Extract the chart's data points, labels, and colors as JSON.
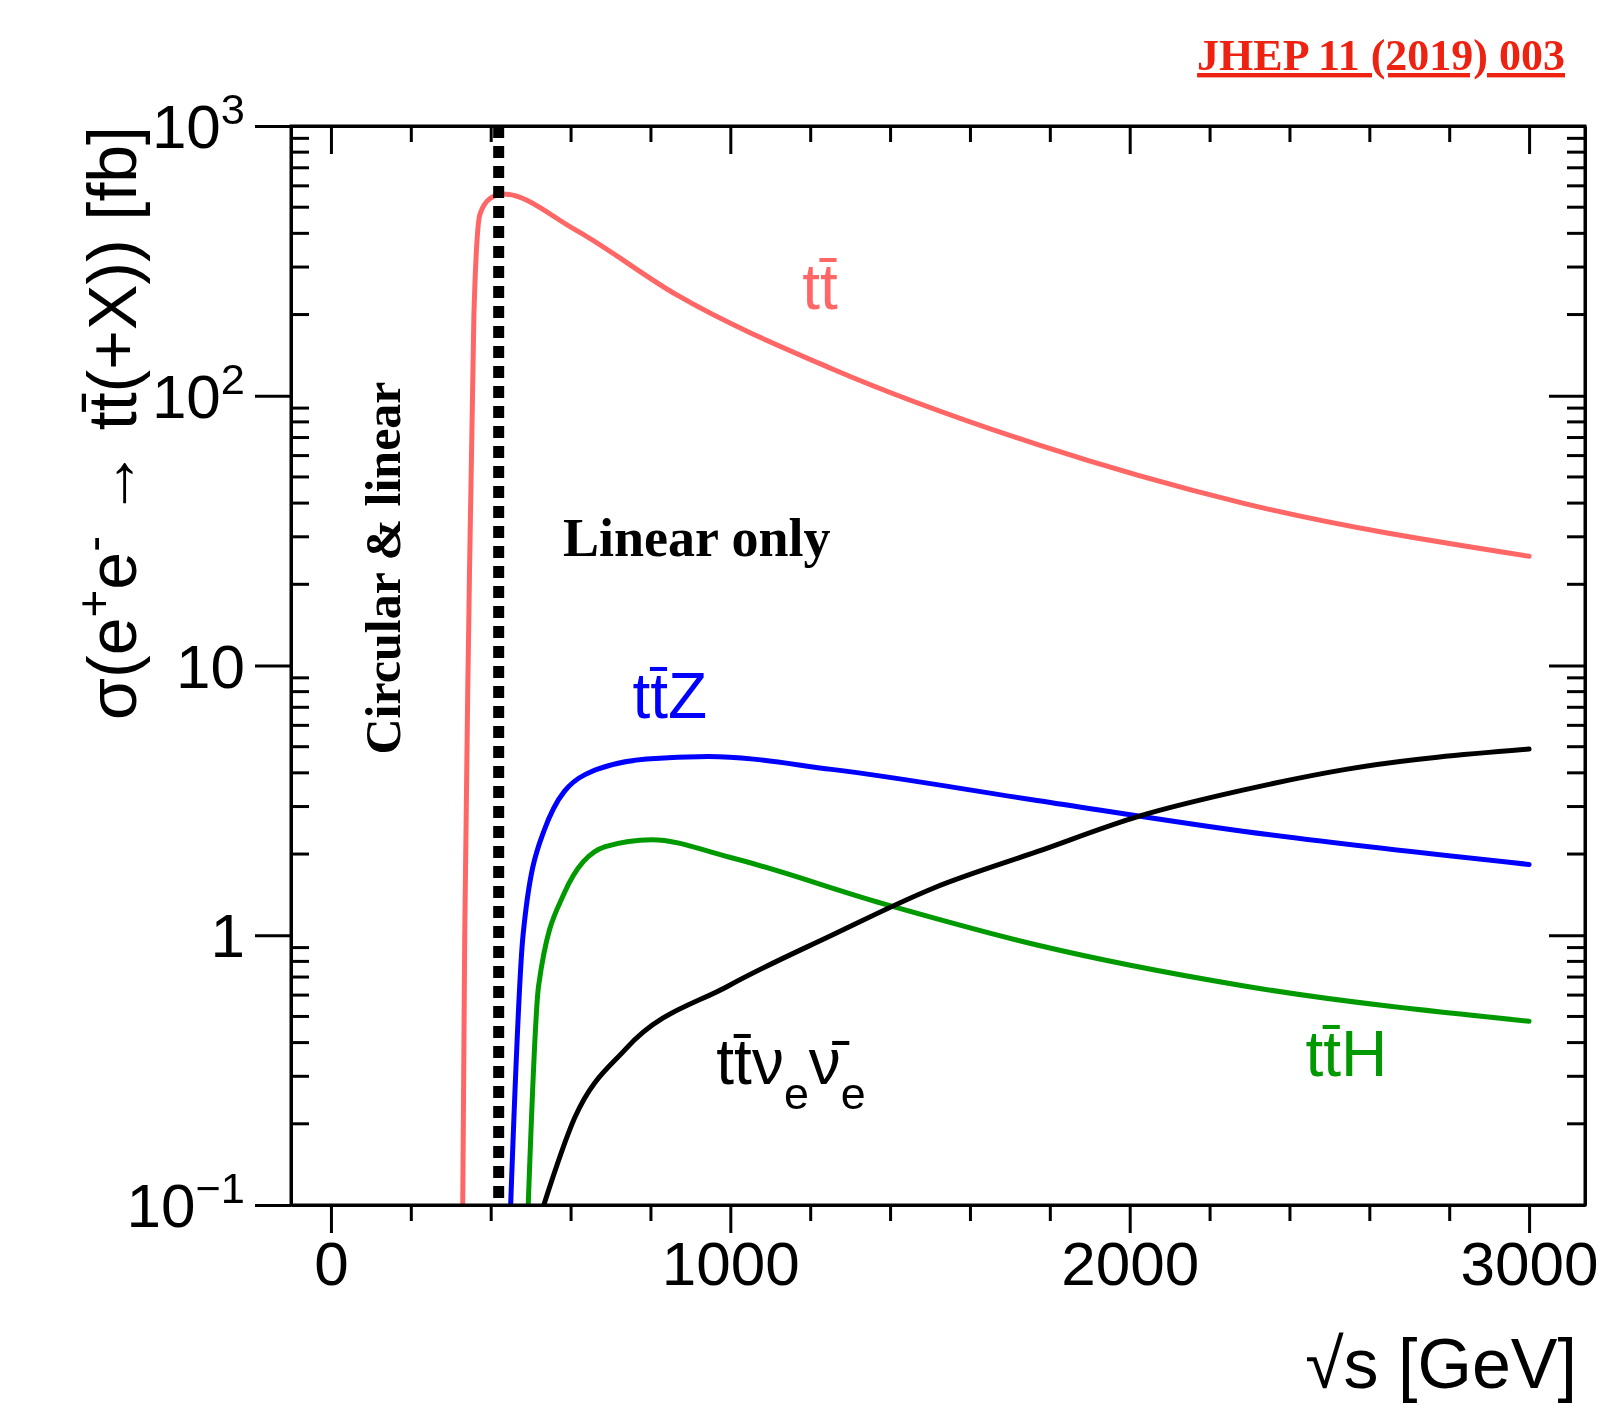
{
  "chart_data": {
    "type": "line",
    "xlabel": "√s [GeV]",
    "ylabel": "σ(e$^{+}$e$^{-}$ → tt̄(+X)) [fb]",
    "log": "y",
    "grid": false,
    "line_style": "solid",
    "marker": "none",
    "xlim": [
      -100,
      3140
    ],
    "xticks": [
      0,
      {
        "value": 200,
        "label": null
      },
      {
        "value": 400,
        "label": null
      },
      {
        "value": 600,
        "label": null
      },
      {
        "value": 800,
        "label": null
      },
      1000,
      {
        "value": 1200,
        "label": null
      },
      {
        "value": 1400,
        "label": null
      },
      {
        "value": 1600,
        "label": null
      },
      {
        "value": 1800,
        "label": null
      },
      2000,
      {
        "value": 2200,
        "label": null
      },
      {
        "value": 2400,
        "label": null
      },
      {
        "value": 2600,
        "label": null
      },
      {
        "value": 2800,
        "label": null
      },
      3000
    ],
    "ylim": [
      0.1,
      1000
    ],
    "yticks": [
      {
        "value": 0.1,
        "label": "10$^{−1}$"
      },
      1,
      10,
      {
        "value": 100,
        "label": "10$^{2}$"
      },
      {
        "value": 1000,
        "label": "10$^{3}$"
      }
    ],
    "series": [
      {
        "name": "tt̄",
        "color": "#ff6666",
        "x": [
          330,
          335,
          345,
          358,
          373,
          399,
          430,
          610,
          867,
          1254,
          1768,
          2283,
          3000
        ],
        "values": [
          0.1,
          1,
          14,
          200,
          470,
          540,
          560,
          414,
          236,
          126,
          66,
          40,
          25.4
        ]
      },
      {
        "name": "tt̄Z",
        "color": "#0000ff",
        "x": [
          450,
          481,
          533,
          636,
          790,
          945,
          1254,
          1768,
          2283,
          3000
        ],
        "values": [
          0.1,
          1,
          2.43,
          3.94,
          4.5,
          4.6,
          4.12,
          3.16,
          2.43,
          1.83
        ]
      },
      {
        "name": "tt̄H",
        "color": "#009900",
        "x": [
          494,
          520,
          584,
          687,
          803,
          996,
          1382,
          1768,
          2283,
          3000
        ],
        "values": [
          0.1,
          0.65,
          1.43,
          2.13,
          2.26,
          1.95,
          1.31,
          0.92,
          0.65,
          0.48
        ]
      },
      {
        "name": "tt̄ν$_{e}$ν̄$_{e}$",
        "color": "#000000",
        "x": [
          533,
          610,
          739,
          996,
          1254,
          1511,
          1768,
          2026,
          2283,
          2541,
          3000
        ],
        "values": [
          0.1,
          0.21,
          0.38,
          0.65,
          1.0,
          1.5,
          2.04,
          2.77,
          3.45,
          4.12,
          4.9
        ]
      }
    ],
    "ref_lines": [
      {
        "axis": "x",
        "value": 420,
        "label": null,
        "color": "#000000",
        "line_style": "dashed"
      }
    ],
    "annotations": [
      "Circular & linear",
      "Linear only",
      "JHEP 11 (2019) 003"
    ]
  }
}
